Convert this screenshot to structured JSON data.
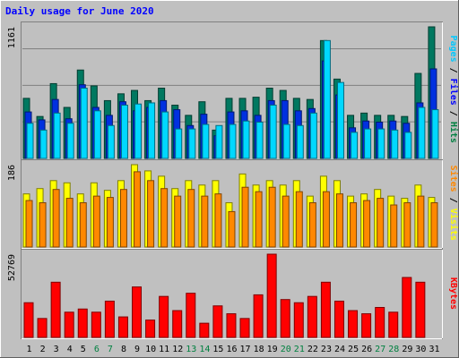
{
  "chart_data": {
    "type": "bar",
    "title": "Daily usage for June 2020",
    "categories": [
      "1",
      "2",
      "3",
      "4",
      "5",
      "6",
      "7",
      "8",
      "9",
      "10",
      "11",
      "12",
      "13",
      "14",
      "15",
      "16",
      "17",
      "18",
      "19",
      "20",
      "21",
      "22",
      "23",
      "24",
      "25",
      "26",
      "27",
      "28",
      "29",
      "30",
      "31"
    ],
    "weekend_days": [
      "6",
      "7",
      "13",
      "14",
      "20",
      "21",
      "27",
      "28"
    ],
    "panels": [
      {
        "id": "hits-files-pages",
        "ymax_label": "1161",
        "ymax": 1161,
        "legend": [
          {
            "text": "Pages",
            "color": "#00c8ff"
          },
          {
            "text": " / ",
            "color": "#000000"
          },
          {
            "text": "Files",
            "color": "#0000ff"
          },
          {
            "text": " / ",
            "color": "#000000"
          },
          {
            "text": "Hits",
            "color": "#008040"
          }
        ],
        "series": [
          {
            "name": "Hits",
            "color": "#007860",
            "values": [
              530,
              370,
              660,
              450,
              780,
              640,
              510,
              570,
              600,
              510,
              620,
              470,
              380,
              500,
              250,
              530,
              530,
              540,
              620,
              600,
              530,
              520,
              1040,
              700,
              380,
              400,
              380,
              380,
              370,
              750,
              1161
            ]
          },
          {
            "name": "Files",
            "color": "#0030e0",
            "values": [
              410,
              340,
              520,
              350,
              650,
              450,
              380,
              500,
              420,
              450,
              510,
              430,
              290,
              390,
              200,
              410,
              420,
              380,
              510,
              510,
              420,
              440,
              860,
              560,
              270,
              330,
              320,
              330,
              310,
              490,
              790
            ]
          },
          {
            "name": "Pages",
            "color": "#00d8ff",
            "values": [
              310,
              250,
              400,
              310,
              620,
              420,
              290,
              470,
              480,
              490,
              410,
              260,
              260,
              300,
              290,
              300,
              330,
              320,
              470,
              300,
              290,
              400,
              1040,
              670,
              230,
              260,
              260,
              250,
              230,
              450,
              430
            ]
          }
        ]
      },
      {
        "id": "visits-sites",
        "ymax_label": "186",
        "ymax": 186,
        "legend": [
          {
            "text": "Sites",
            "color": "#ff8800"
          },
          {
            "text": " / ",
            "color": "#000000"
          },
          {
            "text": "Visits",
            "color": "#ffff00"
          }
        ],
        "series": [
          {
            "name": "Visits",
            "color": "#ffff00",
            "values": [
              120,
              132,
              150,
              145,
              120,
              145,
              128,
              150,
              186,
              172,
              160,
              132,
              150,
              140,
              150,
              100,
              165,
              140,
              150,
              140,
              150,
              115,
              160,
              150,
              115,
              120,
              130,
              115,
              110,
              140,
              112
            ]
          },
          {
            "name": "Sites",
            "color": "#ff8800",
            "values": [
              105,
              100,
              130,
              110,
              100,
              115,
              112,
              130,
              170,
              150,
              132,
              115,
              130,
              115,
              120,
              80,
              135,
              125,
              135,
              115,
              125,
              100,
              125,
              120,
              100,
              105,
              110,
              95,
              100,
              115,
              100
            ]
          }
        ]
      },
      {
        "id": "kbytes",
        "ymax_label": "52769",
        "ymax": 52769,
        "legend": [
          {
            "text": "KBytes",
            "color": "#ff0000"
          }
        ],
        "series": [
          {
            "name": "KBytes",
            "color": "#ff0000",
            "values": [
              22000,
              12000,
              35000,
              16000,
              18000,
              16000,
              23000,
              13000,
              32000,
              11000,
              26000,
              17000,
              28000,
              9000,
              20000,
              15000,
              12000,
              27000,
              52769,
              24000,
              22000,
              26000,
              35000,
              23000,
              17000,
              15000,
              19000,
              16000,
              38000,
              35000,
              0
            ]
          }
        ]
      }
    ]
  }
}
